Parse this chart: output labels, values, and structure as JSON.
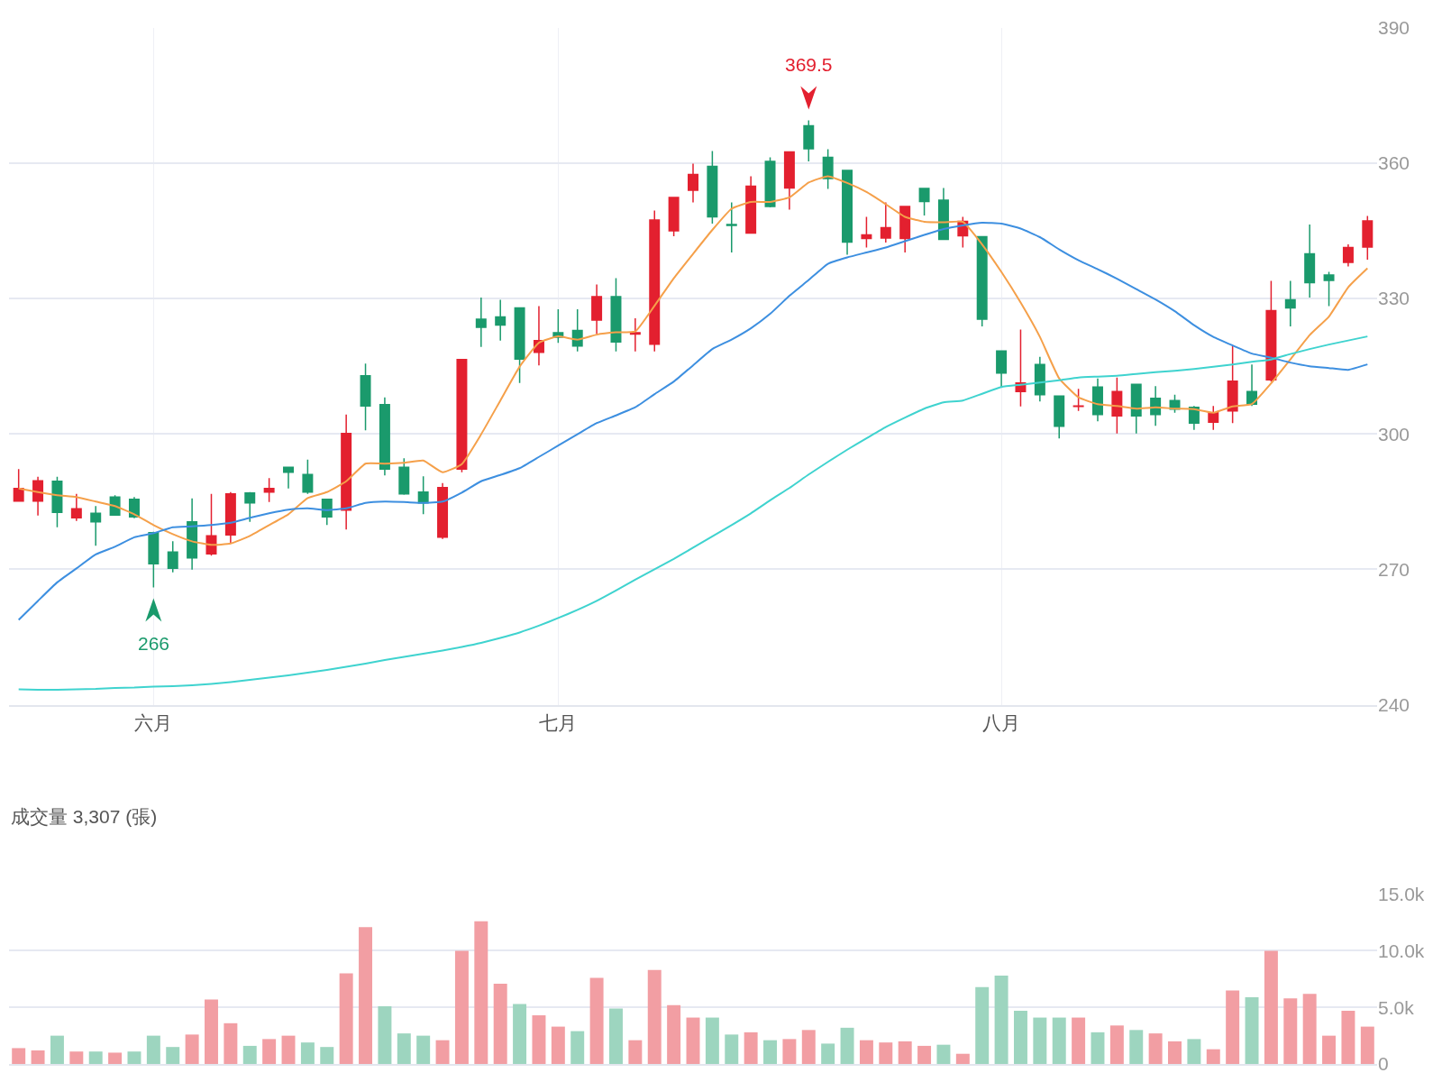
{
  "chart_data": [
    {
      "type": "candlestick",
      "categories": [
        null,
        null,
        null,
        null,
        null,
        null,
        null,
        "六月",
        null,
        null,
        null,
        null,
        null,
        null,
        null,
        null,
        null,
        null,
        null,
        null,
        null,
        null,
        null,
        null,
        null,
        null,
        null,
        null,
        "七月",
        null,
        null,
        null,
        null,
        null,
        null,
        null,
        null,
        null,
        null,
        null,
        null,
        null,
        null,
        null,
        null,
        null,
        null,
        null,
        null,
        null,
        null,
        "八月",
        null,
        null,
        null,
        null,
        null,
        null,
        null,
        null,
        null,
        null,
        null,
        null,
        null,
        null,
        null,
        null,
        null,
        null,
        null
      ],
      "series": [
        {
          "type": "candlestick",
          "colors": [
            "#e3202f",
            "#e3202f",
            "#1a9a6c",
            "#e3202f",
            "#1a9a6c",
            "#1a9a6c",
            "#1a9a6c",
            "#1a9a6c",
            "#1a9a6c",
            "#1a9a6c",
            "#e3202f",
            "#e3202f",
            "#1a9a6c",
            "#e3202f",
            "#1a9a6c",
            "#1a9a6c",
            "#1a9a6c",
            "#e3202f",
            "#1a9a6c",
            "#1a9a6c",
            "#1a9a6c",
            "#1a9a6c",
            "#e3202f",
            "#e3202f",
            "#1a9a6c",
            "#1a9a6c",
            "#1a9a6c",
            "#e3202f",
            "#1a9a6c",
            "#1a9a6c",
            "#e3202f",
            "#1a9a6c",
            "#e3202f",
            "#e3202f",
            "#e3202f",
            "#e3202f",
            "#1a9a6c",
            "#1a9a6c",
            "#e3202f",
            "#1a9a6c",
            "#e3202f",
            "#1a9a6c",
            "#1a9a6c",
            "#1a9a6c",
            "#e3202f",
            "#e3202f",
            "#e3202f",
            "#1a9a6c",
            "#1a9a6c",
            "#e3202f",
            "#1a9a6c",
            "#1a9a6c",
            "#e3202f",
            "#1a9a6c",
            "#1a9a6c",
            "#e3202f",
            "#1a9a6c",
            "#e3202f",
            "#1a9a6c",
            "#1a9a6c",
            "#1a9a6c",
            "#1a9a6c",
            "#e3202f",
            "#e3202f",
            "#1a9a6c",
            "#e3202f",
            "#1a9a6c",
            "#1a9a6c",
            "#1a9a6c",
            "#e3202f",
            "#e3202f"
          ],
          "ohlc": [
            [
              285.1,
              292.2,
              285.0,
              287.9
            ],
            [
              285.1,
              290.5,
              281.9,
              289.6
            ],
            [
              289.5,
              290.5,
              279.3,
              282.6
            ],
            [
              281.4,
              286.7,
              280.7,
              283.4
            ],
            [
              282.4,
              284.0,
              275.2,
              280.5
            ],
            [
              286.0,
              286.4,
              281.9,
              282.0
            ],
            [
              285.5,
              286.0,
              281.3,
              281.6
            ],
            [
              278.1,
              278.3,
              266,
              271.2
            ],
            [
              273.8,
              276.2,
              269.3,
              270.2
            ],
            [
              280.5,
              285.7,
              269.9,
              272.5
            ],
            [
              273.4,
              286.7,
              273.0,
              277.4
            ],
            [
              277.6,
              287.1,
              275.7,
              286.7
            ],
            [
              286.9,
              287.1,
              280.5,
              284.7
            ],
            [
              287.1,
              290.2,
              284.9,
              287.9
            ],
            [
              292.6,
              292.7,
              287.9,
              291.5
            ],
            [
              291.0,
              294.3,
              286.7,
              287.1
            ],
            [
              285.5,
              285.5,
              279.8,
              281.6
            ],
            [
              283.1,
              304.3,
              278.8,
              300.1
            ],
            [
              312.9,
              315.6,
              300.8,
              306.2
            ],
            [
              306.5,
              308.1,
              290.8,
              292.2
            ],
            [
              292.6,
              294.6,
              286.5,
              286.7
            ],
            [
              287.1,
              290.6,
              282.2,
              284.7
            ],
            [
              277.1,
              289.1,
              276.7,
              288.1
            ],
            [
              292.2,
              316.6,
              291.5,
              316.5
            ],
            [
              325.4,
              330.2,
              319.3,
              323.6
            ],
            [
              325.9,
              329.7,
              320.7,
              324.1
            ],
            [
              327.9,
              327.9,
              311.3,
              316.6
            ],
            [
              318.1,
              328.3,
              315.2,
              320.7
            ],
            [
              322.4,
              327.6,
              320.2,
              321.4
            ],
            [
              322.9,
              327.6,
              318.3,
              319.5
            ],
            [
              325.2,
              333.1,
              322.1,
              330.4
            ],
            [
              330.4,
              334.5,
              318.3,
              320.4
            ],
            [
              322.1,
              325.6,
              318.3,
              322.4
            ],
            [
              319.9,
              349.5,
              318.3,
              347.4
            ],
            [
              345.0,
              352.4,
              343.8,
              352.4
            ],
            [
              354.0,
              359.9,
              351.3,
              357.5
            ],
            [
              359.3,
              362.7,
              346.6,
              348.1
            ],
            [
              346.4,
              351.3,
              340.2,
              346.2
            ],
            [
              344.5,
              357.1,
              344.5,
              354.9
            ],
            [
              360.4,
              361.3,
              350.2,
              350.4
            ],
            [
              354.5,
              362.5,
              349.7,
              362.5
            ],
            [
              368.3,
              369.5,
              360.4,
              363.2
            ],
            [
              361.3,
              363.1,
              354.3,
              356.6
            ],
            [
              358.4,
              358.4,
              339.7,
              342.5
            ],
            [
              343.3,
              348.1,
              341.3,
              344.1
            ],
            [
              343.4,
              351.3,
              342.4,
              345.7
            ],
            [
              343.3,
              350.4,
              340.2,
              350.4
            ],
            [
              354.4,
              354.4,
              348.4,
              351.5
            ],
            [
              351.8,
              354.5,
              343.1,
              343.1
            ],
            [
              343.9,
              348.1,
              341.3,
              347.1
            ],
            [
              343.7,
              343.7,
              323.8,
              325.4
            ],
            [
              318.4,
              318.4,
              310.4,
              313.5
            ],
            [
              309.4,
              323.1,
              306.1,
              311.3
            ],
            [
              315.4,
              317.1,
              307.2,
              308.7
            ],
            [
              308.4,
              308.4,
              299.0,
              301.7
            ],
            [
              306.1,
              310.0,
              305.1,
              306.2
            ],
            [
              310.4,
              312.3,
              302.8,
              304.3
            ],
            [
              304.0,
              312.5,
              300.1,
              309.4
            ],
            [
              311.0,
              311.0,
              300.1,
              304.0
            ],
            [
              307.9,
              310.6,
              301.8,
              304.3
            ],
            [
              307.4,
              308.7,
              304.7,
              305.5
            ],
            [
              305.9,
              306.2,
              300.9,
              302.4
            ],
            [
              302.6,
              306.2,
              300.9,
              304.7
            ],
            [
              305.1,
              319.6,
              302.4,
              311.7
            ],
            [
              309.4,
              315.4,
              306.2,
              306.6
            ],
            [
              312.0,
              333.9,
              311.6,
              327.3
            ],
            [
              329.7,
              333.9,
              323.8,
              327.9
            ],
            [
              339.9,
              346.4,
              330.2,
              333.5
            ],
            [
              335.2,
              335.9,
              328.3,
              334.0
            ],
            [
              338.0,
              342.0,
              337.1,
              341.3
            ],
            [
              341.4,
              348.3,
              338.6,
              347.2
            ]
          ]
        },
        {
          "type": "line",
          "color": "#f5a04a",
          "values": [
            287.9,
            287.1,
            286.4,
            286.0,
            285.0,
            284.0,
            282.2,
            279.8,
            277.8,
            276.2,
            275.4,
            275.7,
            277.4,
            279.8,
            282.2,
            285.8,
            287.1,
            289.5,
            293.4,
            293.4,
            293.6,
            294.1,
            291.5,
            293.3,
            299.9,
            307.4,
            314.9,
            320.2,
            321.6,
            320.9,
            322.0,
            322.5,
            322.7,
            328.4,
            334.5,
            339.9,
            345.2,
            349.9,
            351.4,
            351.4,
            352.4,
            355.7,
            357.1,
            355.6,
            353.6,
            350.9,
            348.1,
            347.0,
            346.9,
            347.0,
            342.0,
            335.9,
            329.1,
            321.5,
            312.3,
            308.1,
            306.6,
            306.2,
            305.6,
            305.9,
            305.6,
            305.5,
            304.7,
            306.1,
            306.6,
            311.2,
            316.5,
            321.9,
            326.0,
            332.5,
            336.7
          ]
        },
        {
          "type": "line",
          "color": "#3d8fe0",
          "values": [
            258.8,
            263.0,
            267.1,
            270.2,
            273.3,
            275.0,
            277.1,
            278.0,
            279.3,
            279.5,
            279.8,
            280.3,
            281.4,
            282.4,
            283.2,
            283.5,
            283.1,
            283.5,
            284.7,
            285.0,
            284.9,
            284.7,
            285.0,
            287.0,
            289.5,
            290.9,
            292.4,
            294.9,
            297.4,
            299.9,
            302.4,
            304.1,
            305.9,
            308.8,
            311.6,
            315.2,
            318.8,
            320.9,
            323.4,
            326.6,
            330.6,
            334.1,
            337.7,
            339.1,
            340.2,
            341.3,
            342.7,
            344.1,
            345.4,
            346.2,
            346.8,
            346.6,
            345.5,
            343.6,
            340.9,
            338.5,
            336.5,
            334.4,
            332.1,
            329.8,
            327.2,
            324.1,
            321.5,
            319.6,
            317.8,
            316.9,
            315.8,
            315.0,
            314.6,
            314.2,
            315.4
          ]
        },
        {
          "type": "line",
          "color": "#3fd3cf",
          "values": [
            243.4,
            243.3,
            243.3,
            243.4,
            243.5,
            243.7,
            243.8,
            244.0,
            244.1,
            244.3,
            244.6,
            245.0,
            245.5,
            246.0,
            246.5,
            247.1,
            247.7,
            248.4,
            249.1,
            249.9,
            250.6,
            251.3,
            252.0,
            252.8,
            253.7,
            254.8,
            256.0,
            257.5,
            259.2,
            261.0,
            263.0,
            265.3,
            267.7,
            270.0,
            272.3,
            274.8,
            277.3,
            279.8,
            282.4,
            285.3,
            288.0,
            291.0,
            293.8,
            296.5,
            299.0,
            301.5,
            303.6,
            305.6,
            307.0,
            307.4,
            308.9,
            310.4,
            310.9,
            311.4,
            311.9,
            312.5,
            312.7,
            312.9,
            313.3,
            313.7,
            314.0,
            314.4,
            314.9,
            315.4,
            316.0,
            316.5,
            317.7,
            318.8,
            319.8,
            320.7,
            321.6
          ]
        }
      ],
      "annotations": [
        {
          "text": "369.5",
          "y": 369.5
        },
        {
          "text": "266",
          "y": 266
        }
      ],
      "ylim": [
        240,
        390
      ],
      "yticks": [
        240,
        270,
        300,
        330,
        360,
        390
      ],
      "grid": true
    },
    {
      "type": "bar",
      "title": "成交量 3,307 (張)",
      "categories": [
        null,
        null,
        null,
        null,
        null,
        null,
        null,
        null,
        null,
        null,
        null,
        null,
        null,
        null,
        null,
        null,
        null,
        null,
        null,
        null,
        null,
        null,
        null,
        null,
        null,
        null,
        null,
        null,
        null,
        null,
        null,
        null,
        null,
        null,
        null,
        null,
        null,
        null,
        null,
        null,
        null,
        null,
        null,
        null,
        null,
        null,
        null,
        null,
        null,
        null,
        null,
        null,
        null,
        null,
        null,
        null,
        null,
        null,
        null,
        null,
        null,
        null,
        null,
        null,
        null,
        null,
        null,
        null,
        null,
        null,
        null
      ],
      "values": [
        1.4,
        1.2,
        2.5,
        1.1,
        1.1,
        1.0,
        1.1,
        2.5,
        1.5,
        2.6,
        5.7,
        3.6,
        1.6,
        2.2,
        2.5,
        1.9,
        1.5,
        8.0,
        12.1,
        5.1,
        2.7,
        2.5,
        2.1,
        10.0,
        12.6,
        7.1,
        5.3,
        4.3,
        3.3,
        2.9,
        7.6,
        4.9,
        2.1,
        8.3,
        5.2,
        4.1,
        4.1,
        2.6,
        2.8,
        2.1,
        2.2,
        3.0,
        1.8,
        3.2,
        2.1,
        1.9,
        2.0,
        1.6,
        1.7,
        0.9,
        6.8,
        7.8,
        4.7,
        4.1,
        4.1,
        4.1,
        2.8,
        3.4,
        3.0,
        2.7,
        2.0,
        2.2,
        1.3,
        6.5,
        5.9,
        10.0,
        5.8,
        6.2,
        2.5,
        4.7,
        3.3
      ],
      "colors": [
        "#f29ea3",
        "#f29ea3",
        "#9dd5bf",
        "#f29ea3",
        "#9dd5bf",
        "#f29ea3",
        "#9dd5bf",
        "#9dd5bf",
        "#9dd5bf",
        "#f29ea3",
        "#f29ea3",
        "#f29ea3",
        "#9dd5bf",
        "#f29ea3",
        "#f29ea3",
        "#9dd5bf",
        "#9dd5bf",
        "#f29ea3",
        "#f29ea3",
        "#9dd5bf",
        "#9dd5bf",
        "#9dd5bf",
        "#f29ea3",
        "#f29ea3",
        "#f29ea3",
        "#f29ea3",
        "#9dd5bf",
        "#f29ea3",
        "#f29ea3",
        "#9dd5bf",
        "#f29ea3",
        "#9dd5bf",
        "#f29ea3",
        "#f29ea3",
        "#f29ea3",
        "#f29ea3",
        "#9dd5bf",
        "#9dd5bf",
        "#f29ea3",
        "#9dd5bf",
        "#f29ea3",
        "#f29ea3",
        "#9dd5bf",
        "#9dd5bf",
        "#f29ea3",
        "#f29ea3",
        "#f29ea3",
        "#f29ea3",
        "#9dd5bf",
        "#f29ea3",
        "#9dd5bf",
        "#9dd5bf",
        "#9dd5bf",
        "#9dd5bf",
        "#9dd5bf",
        "#f29ea3",
        "#9dd5bf",
        "#f29ea3",
        "#9dd5bf",
        "#f29ea3",
        "#f29ea3",
        "#9dd5bf",
        "#f29ea3",
        "#f29ea3",
        "#9dd5bf",
        "#f29ea3",
        "#f29ea3",
        "#f29ea3",
        "#f29ea3",
        "#f29ea3",
        "#f29ea3"
      ],
      "ylim": [
        0,
        15
      ],
      "yticks": [
        0,
        {
          "value": 5,
          "label": "5.0k"
        },
        {
          "value": 10,
          "label": "10.0k"
        },
        {
          "value": 15,
          "label": "15.0k"
        }
      ],
      "grid": "y"
    }
  ]
}
